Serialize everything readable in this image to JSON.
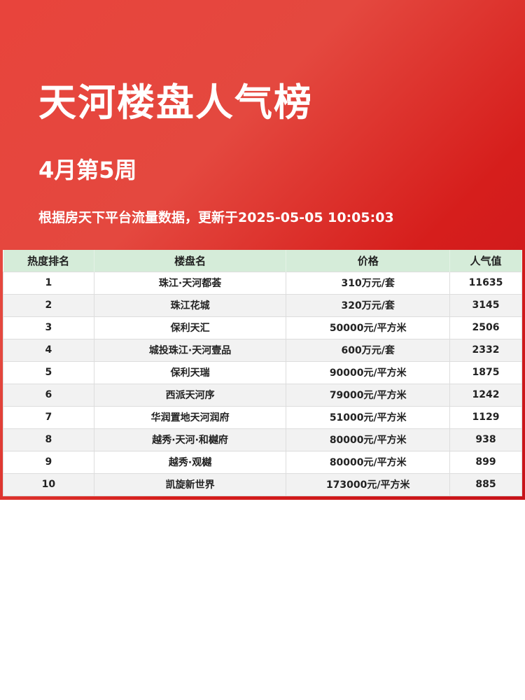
{
  "title": "天河楼盘人气榜",
  "week": "4月第5周",
  "subtitle": "根据房天下平台流量数据，更新于2025-05-05 10:05:03",
  "columns": [
    "热度排名",
    "楼盘名",
    "价格",
    "人气值"
  ],
  "rows": [
    [
      "1",
      "珠江·天河都荟",
      "310万元/套",
      "11635"
    ],
    [
      "2",
      "珠江花城",
      "320万元/套",
      "3145"
    ],
    [
      "3",
      "保利天汇",
      "50000元/平方米",
      "2506"
    ],
    [
      "4",
      "城投珠江·天河壹品",
      "600万元/套",
      "2332"
    ],
    [
      "5",
      "保利天瑞",
      "90000元/平方米",
      "1875"
    ],
    [
      "6",
      "西派天河序",
      "79000元/平方米",
      "1242"
    ],
    [
      "7",
      "华润置地天河润府",
      "51000元/平方米",
      "1129"
    ],
    [
      "8",
      "越秀·天河·和樾府",
      "80000元/平方米",
      "938"
    ],
    [
      "9",
      "越秀·观樾",
      "80000元/平方米",
      "899"
    ],
    [
      "10",
      "凯旋新世界",
      "173000元/平方米",
      "885"
    ]
  ],
  "colors": {
    "background": "#d9231f",
    "header": "#d5ecd9"
  }
}
